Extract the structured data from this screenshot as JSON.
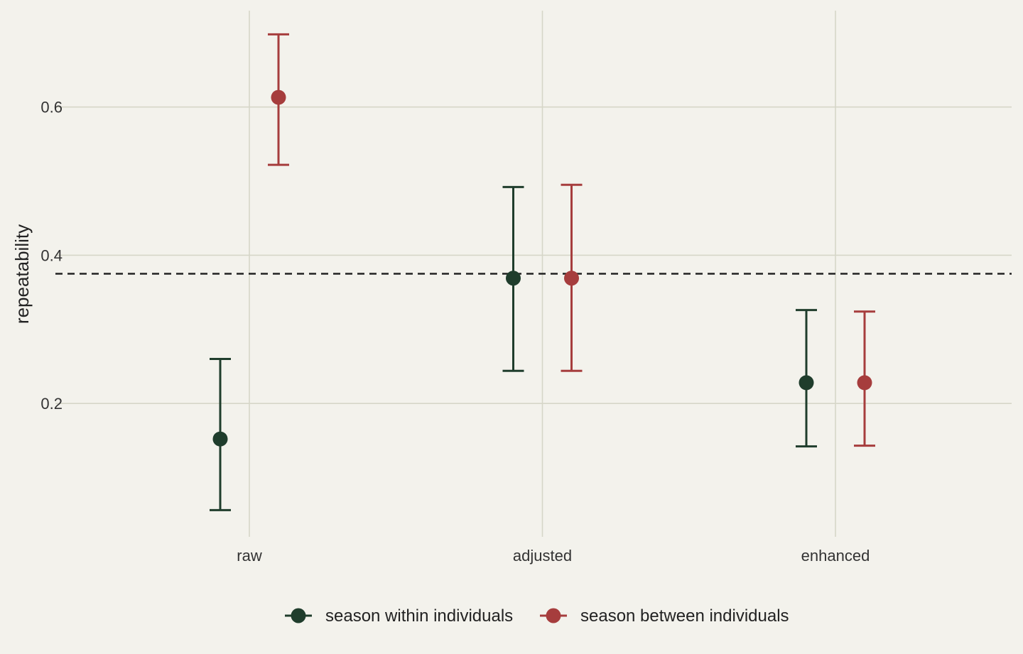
{
  "chart_data": {
    "type": "scatter",
    "categories": [
      "raw",
      "adjusted",
      "enhanced"
    ],
    "ylabel": "repeatability",
    "ylim": [
      0.02,
      0.73
    ],
    "yticks": [
      0.2,
      0.4,
      0.6
    ],
    "ytick_labels": [
      "0.2",
      "0.4",
      "0.6"
    ],
    "reference_line": 0.375,
    "grid": true,
    "legend_position": "bottom",
    "series": [
      {
        "name": "season within individuals",
        "color": "#1f3d2c",
        "values": [
          0.152,
          0.369,
          0.228
        ],
        "lower": [
          0.056,
          0.244,
          0.142
        ],
        "upper": [
          0.26,
          0.492,
          0.326
        ]
      },
      {
        "name": "season between individuals",
        "color": "#a63d3d",
        "values": [
          0.613,
          0.369,
          0.228
        ],
        "lower": [
          0.522,
          0.244,
          0.143
        ],
        "upper": [
          0.698,
          0.495,
          0.324
        ]
      }
    ]
  }
}
